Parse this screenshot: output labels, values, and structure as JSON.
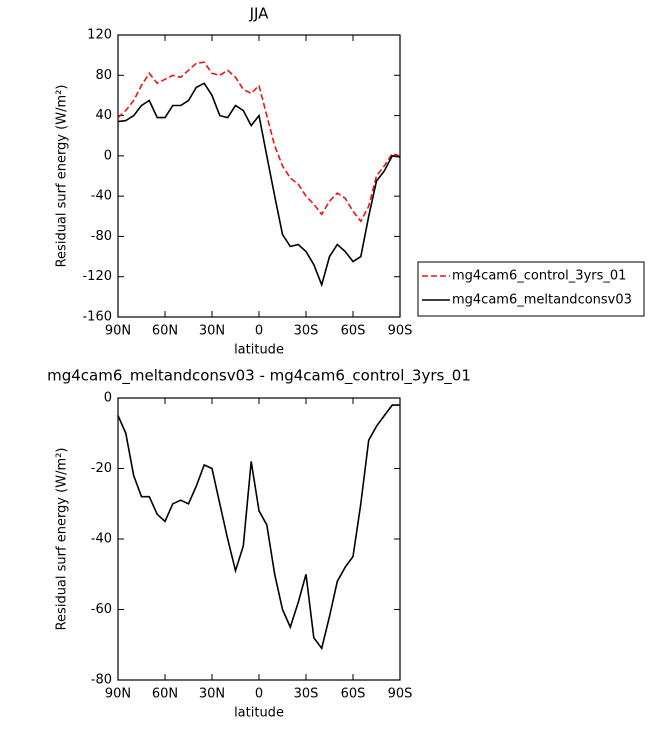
{
  "chart_data": [
    {
      "type": "line",
      "title": "JJA",
      "x_label": "latitude",
      "y_label": "Residual surf energy (W/m²)",
      "x": [
        90,
        85,
        80,
        75,
        70,
        65,
        60,
        55,
        50,
        45,
        40,
        35,
        30,
        25,
        20,
        15,
        10,
        5,
        0,
        -5,
        -10,
        -15,
        -20,
        -25,
        -30,
        -35,
        -40,
        -45,
        -50,
        -55,
        -60,
        -65,
        -70,
        -75,
        -80,
        -85,
        -90
      ],
      "xlim": [
        90,
        -90
      ],
      "xticks": [
        {
          "value": 90,
          "label": "90N"
        },
        {
          "value": 60,
          "label": "60N"
        },
        {
          "value": 30,
          "label": "30N"
        },
        0,
        {
          "value": -30,
          "label": "30S"
        },
        {
          "value": -60,
          "label": "60S"
        },
        {
          "value": -90,
          "label": "90S"
        }
      ],
      "ylim": [
        -160,
        120
      ],
      "yticks": [
        -160,
        -120,
        -80,
        -40,
        0,
        40,
        80,
        120
      ],
      "legend": "right",
      "series": [
        {
          "name": "mg4cam6_control_3yrs_01",
          "color": "#e8141a",
          "dash": true,
          "values": [
            38,
            45,
            55,
            70,
            82,
            72,
            76,
            80,
            78,
            85,
            92,
            93,
            82,
            80,
            85,
            78,
            66,
            62,
            70,
            40,
            10,
            -10,
            -22,
            -28,
            -40,
            -48,
            -58,
            -45,
            -37,
            -42,
            -55,
            -65,
            -50,
            -20,
            -10,
            2,
            0
          ]
        },
        {
          "name": "mg4cam6_meltandconsv03",
          "color": "#000000",
          "dash": false,
          "values": [
            34,
            35,
            40,
            50,
            55,
            38,
            38,
            50,
            50,
            55,
            68,
            72,
            60,
            40,
            38,
            50,
            45,
            30,
            40,
            0,
            -40,
            -78,
            -90,
            -88,
            -95,
            -108,
            -128,
            -100,
            -88,
            -95,
            -105,
            -100,
            -60,
            -25,
            -15,
            0,
            -1
          ]
        }
      ]
    },
    {
      "type": "line",
      "title": "mg4cam6_meltandconsv03 - mg4cam6_control_3yrs_01",
      "x_label": "latitude",
      "y_label": "Residual surf energy (W/m²)",
      "x": [
        90,
        85,
        80,
        75,
        70,
        65,
        60,
        55,
        50,
        45,
        40,
        35,
        30,
        25,
        20,
        15,
        10,
        5,
        0,
        -5,
        -10,
        -15,
        -20,
        -25,
        -30,
        -35,
        -40,
        -45,
        -50,
        -55,
        -60,
        -65,
        -70,
        -75,
        -80,
        -85,
        -90
      ],
      "xlim": [
        90,
        -90
      ],
      "xticks": [
        {
          "value": 90,
          "label": "90N"
        },
        {
          "value": 60,
          "label": "60N"
        },
        {
          "value": 30,
          "label": "30N"
        },
        0,
        {
          "value": -30,
          "label": "30S"
        },
        {
          "value": -60,
          "label": "60S"
        },
        {
          "value": -90,
          "label": "90S"
        }
      ],
      "ylim": [
        -80,
        0
      ],
      "yticks": [
        -80,
        -60,
        -40,
        -20,
        0
      ],
      "color": "#000000",
      "values": [
        -5,
        -10,
        -22,
        -28,
        -28,
        -33,
        -35,
        -30,
        -29,
        -30,
        -25,
        -19,
        -20,
        -30,
        -40,
        -49,
        -42,
        -18,
        -32,
        -36,
        -50,
        -60,
        -65,
        -58,
        -50,
        -68,
        -71,
        -62,
        -52,
        -48,
        -45,
        -30,
        -12,
        -8,
        -5,
        -2,
        -2
      ]
    }
  ]
}
